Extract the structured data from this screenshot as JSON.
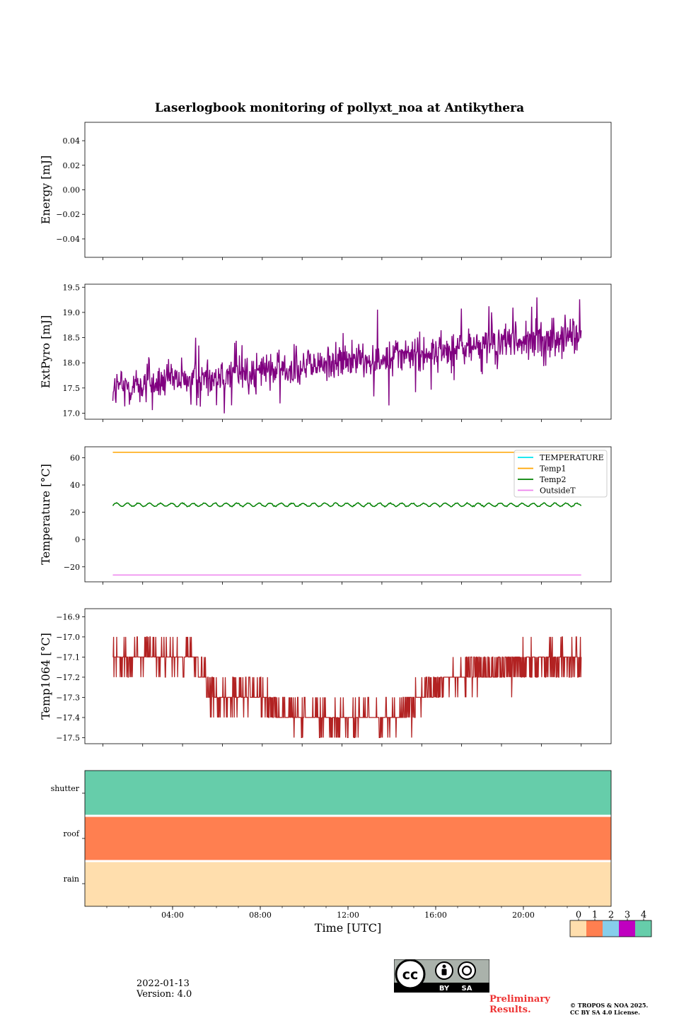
{
  "footer": {
    "date": "2022-01-13",
    "version": "Version: 4.0",
    "preliminary_line1": "Preliminary",
    "preliminary_line2": "Results.",
    "copyright_line1": "© TROPOS & NOA 2025.",
    "copyright_line2": "CC BY SA 4.0 License.",
    "cc_by": "BY",
    "cc_sa": "SA"
  },
  "chart_data": [
    {
      "type": "line",
      "title": "Laserlogbook monitoring of pollyxt_noa at Antikythera",
      "ylabel": "Energy [mJ]",
      "ylim": [
        -0.055,
        0.055
      ],
      "yticks": [
        0.04,
        0.02,
        0.0,
        -0.02,
        -0.04
      ],
      "ytick_labels": [
        "0.04",
        "0.02",
        "0.00",
        "−0.02",
        "−0.04"
      ],
      "series": []
    },
    {
      "type": "line",
      "ylabel": "ExtPyro [mJ]",
      "ylim": [
        16.88,
        19.56
      ],
      "yticks": [
        19.5,
        19.0,
        18.5,
        18.0,
        17.5,
        17.0
      ],
      "ytick_labels": [
        "19.5",
        "19.0",
        "18.5",
        "18.0",
        "17.5",
        "17.0"
      ],
      "series": [
        {
          "color": "#800080",
          "x_range_hours": [
            0.5,
            24.0
          ],
          "trend_start": 17.5,
          "trend_end": 18.55,
          "noise": 0.25
        }
      ]
    },
    {
      "type": "line",
      "ylabel": "Temperature [°C]",
      "ylim": [
        -31,
        68
      ],
      "yticks": [
        60,
        40,
        20,
        0,
        -20
      ],
      "ytick_labels": [
        "60",
        "40",
        "20",
        "0",
        "−20"
      ],
      "legend": "top-right",
      "series": [
        {
          "name": "TEMPERATURE",
          "color": "#00e5ee",
          "values": []
        },
        {
          "name": "Temp1",
          "color": "#ffa500",
          "x_range_hours": [
            0.5,
            24.0
          ],
          "constant": 64
        },
        {
          "name": "Temp2",
          "color": "#008000",
          "x_range_hours": [
            0.5,
            24.0
          ],
          "mean": 25.5,
          "amplitude": 1.2
        },
        {
          "name": "OutsideT",
          "color": "#ee82ee",
          "x_range_hours": [
            0.5,
            24.0
          ],
          "constant": -26
        }
      ]
    },
    {
      "type": "line",
      "ylabel": "Temp1064 [°C]",
      "ylim": [
        -17.53,
        -16.86
      ],
      "yticks": [
        -16.9,
        -17.0,
        -17.1,
        -17.2,
        -17.3,
        -17.4,
        -17.5
      ],
      "ytick_labels": [
        "−16.9",
        "−17.0",
        "−17.1",
        "−17.2",
        "−17.3",
        "−17.4",
        "−17.5"
      ],
      "series": [
        {
          "color": "#b22222",
          "x_range_hours": [
            0.5,
            24.0
          ],
          "profile": [
            [
              0.5,
              -17.1
            ],
            [
              4.5,
              -17.1
            ],
            [
              5.5,
              -17.3
            ],
            [
              8.0,
              -17.3
            ],
            [
              9.5,
              -17.4
            ],
            [
              14.5,
              -17.4
            ],
            [
              16.0,
              -17.3
            ],
            [
              17.5,
              -17.2
            ],
            [
              20.0,
              -17.15
            ],
            [
              24.0,
              -17.1
            ]
          ]
        }
      ]
    },
    {
      "type": "heatmap",
      "xlabel": "Time [UTC]",
      "xticks_hours": [
        4,
        8,
        12,
        16,
        20
      ],
      "xtick_labels": [
        "04:00",
        "08:00",
        "12:00",
        "16:00",
        "20:00"
      ],
      "x_range_hours": [
        0,
        24
      ],
      "rows": [
        "shutter",
        "roof",
        "rain"
      ],
      "row_values": [
        4,
        1,
        0
      ],
      "colorbar": {
        "labels": [
          "0",
          "1",
          "2",
          "3",
          "4"
        ],
        "colors": [
          "#ffdead",
          "#ff7f50",
          "#87ceeb",
          "#c000c0",
          "#66cdaa"
        ]
      }
    }
  ]
}
